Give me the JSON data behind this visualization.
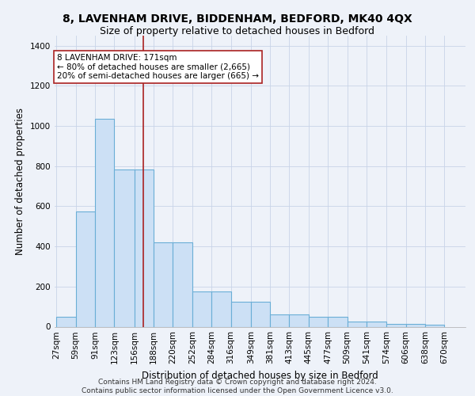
{
  "title1": "8, LAVENHAM DRIVE, BIDDENHAM, BEDFORD, MK40 4QX",
  "title2": "Size of property relative to detached houses in Bedford",
  "xlabel": "Distribution of detached houses by size in Bedford",
  "ylabel": "Number of detached properties",
  "bin_edges": [
    27,
    59,
    91,
    123,
    156,
    188,
    220,
    252,
    284,
    316,
    349,
    381,
    413,
    445,
    477,
    509,
    541,
    574,
    606,
    638,
    670
  ],
  "bar_heights": [
    50,
    575,
    1035,
    785,
    785,
    420,
    420,
    175,
    175,
    125,
    125,
    60,
    60,
    50,
    50,
    25,
    25,
    15,
    15,
    10,
    0
  ],
  "bar_color": "#cce0f5",
  "bar_edgecolor": "#6aaed6",
  "bar_linewidth": 0.8,
  "grid_color": "#c8d4e8",
  "background_color": "#eef2f9",
  "vline_x": 171,
  "vline_color": "#aa2222",
  "vline_linewidth": 1.2,
  "annotation_text": "8 LAVENHAM DRIVE: 171sqm\n← 80% of detached houses are smaller (2,665)\n20% of semi-detached houses are larger (665) →",
  "annotation_box_edgecolor": "#aa2222",
  "annotation_box_facecolor": "#ffffff",
  "ylim": [
    0,
    1450
  ],
  "yticks": [
    0,
    200,
    400,
    600,
    800,
    1000,
    1200,
    1400
  ],
  "footnote": "Contains HM Land Registry data © Crown copyright and database right 2024.\nContains public sector information licensed under the Open Government Licence v3.0.",
  "title1_fontsize": 10,
  "title2_fontsize": 9,
  "xlabel_fontsize": 8.5,
  "ylabel_fontsize": 8.5,
  "tick_fontsize": 7.5,
  "annotation_fontsize": 7.5,
  "footnote_fontsize": 6.5
}
